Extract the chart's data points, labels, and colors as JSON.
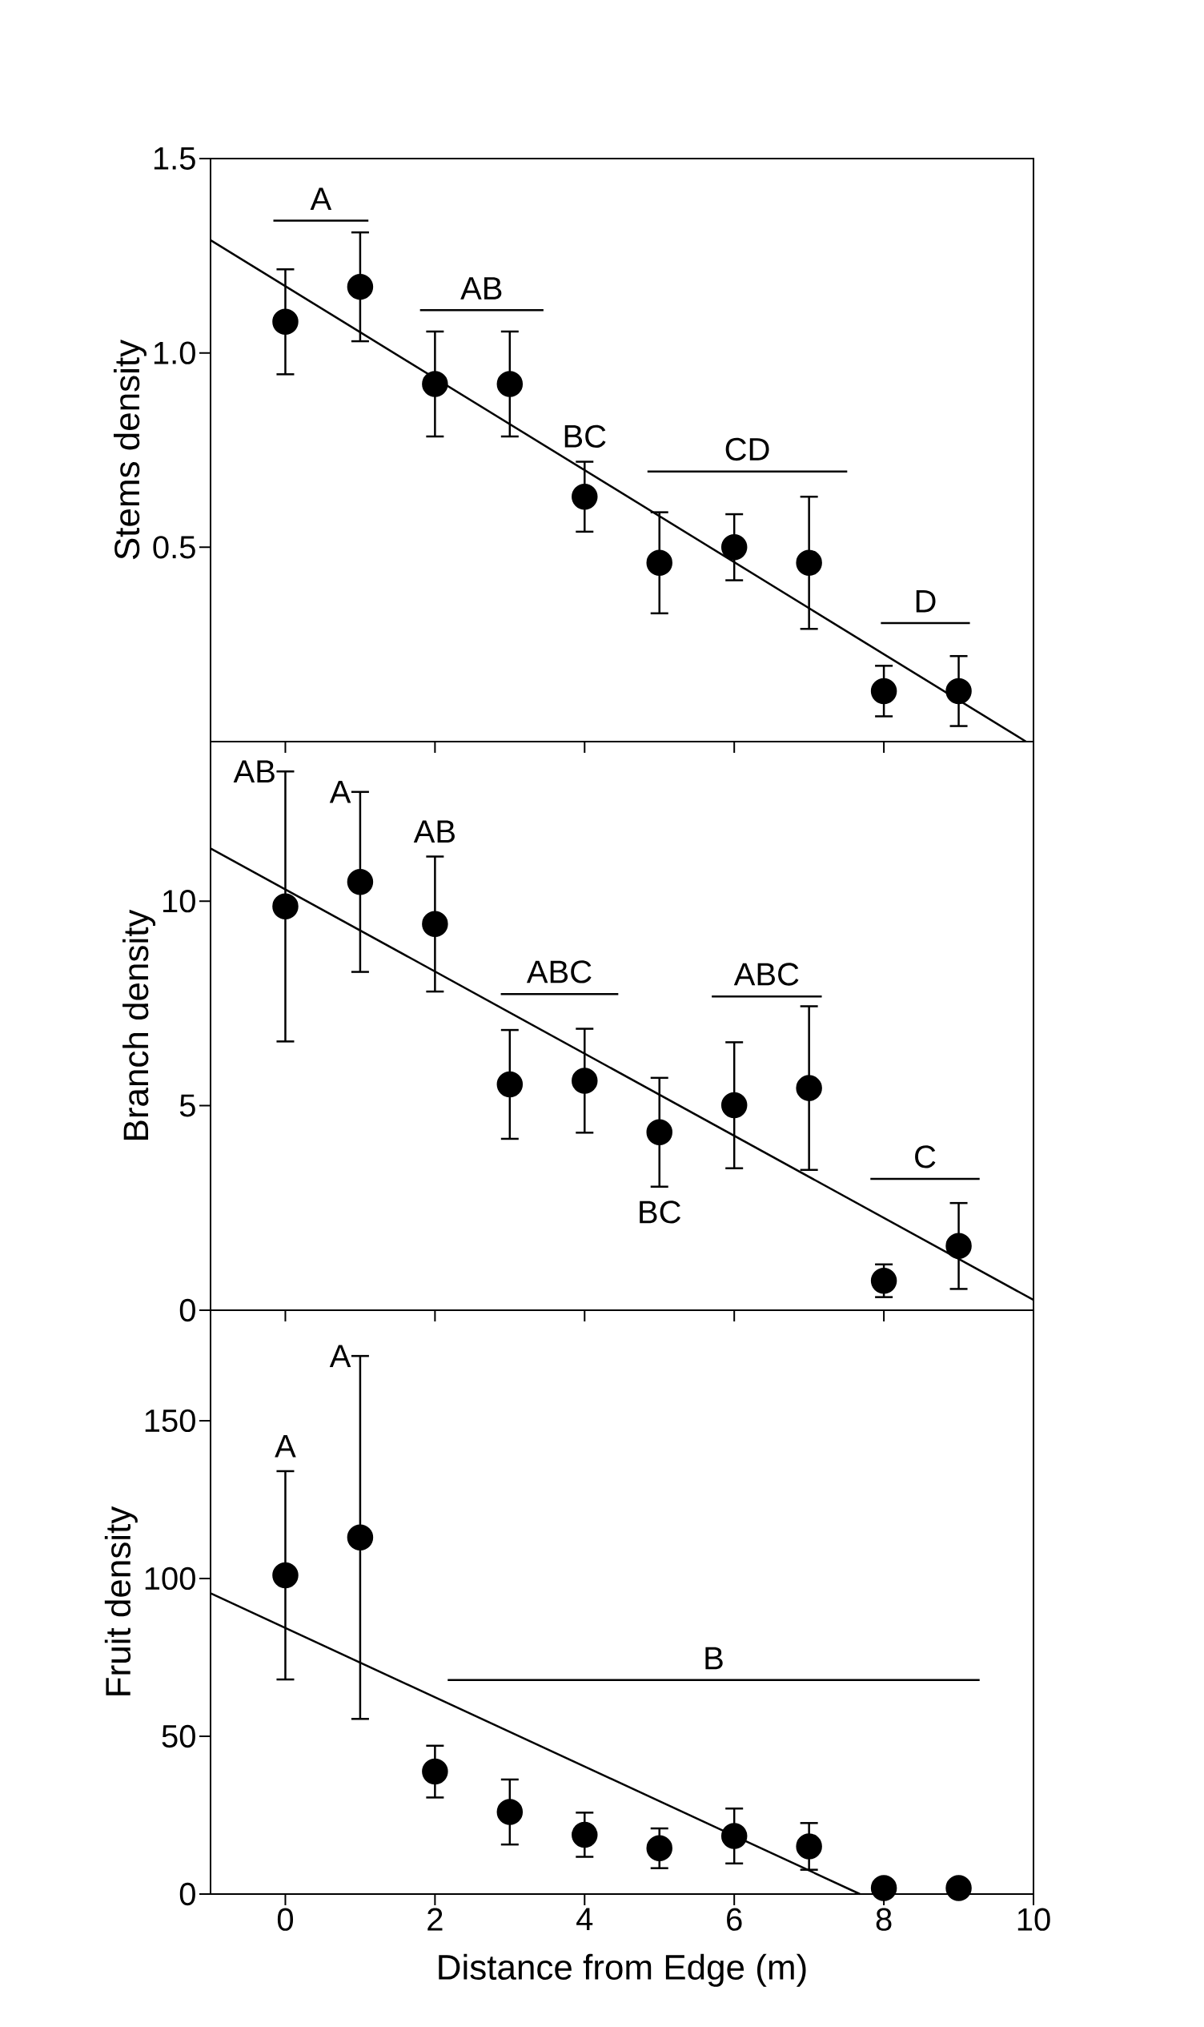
{
  "chart_data": [
    {
      "type": "scatter",
      "ylabel": "Stems density",
      "xlim": [
        -1,
        10
      ],
      "xticks": [
        0,
        2,
        4,
        6,
        8,
        10
      ],
      "ylim": [
        0,
        1.5
      ],
      "yticks": [
        0.5,
        {
          "value": 1,
          "label": "1.0"
        },
        1.5
      ],
      "tick_labels": "y",
      "marker": "circle",
      "series": [
        {
          "color": "#000000",
          "x": [
            0,
            1,
            2,
            3,
            4,
            5,
            6,
            7,
            8,
            9
          ],
          "values": [
            1.08,
            1.17,
            0.92,
            0.92,
            0.63,
            0.46,
            0.5,
            0.46,
            0.13,
            0.13
          ],
          "errors": [
            0.135,
            0.14,
            0.135,
            0.135,
            0.09,
            0.13,
            0.085,
            0.17,
            0.065,
            0.09
          ]
        },
        {
          "type": "line",
          "marker": "none",
          "color": "#000000",
          "x": [
            -1,
            9.9
          ],
          "values": [
            1.29,
            0.0
          ]
        },
        {
          "type": "line",
          "name": "A",
          "marker": "none",
          "color": "#000000",
          "x": [
            -0.16,
            1.11
          ],
          "values": [
            1.34,
            1.34
          ]
        },
        {
          "type": "line",
          "name": "AB",
          "marker": "none",
          "color": "#000000",
          "x": [
            1.8,
            3.45
          ],
          "values": [
            1.11,
            1.11
          ]
        },
        {
          "type": "line",
          "name": "CD",
          "marker": "none",
          "color": "#000000",
          "x": [
            4.84,
            7.51
          ],
          "values": [
            0.695,
            0.695
          ]
        },
        {
          "type": "line",
          "name": "D",
          "marker": "none",
          "color": "#000000",
          "x": [
            7.96,
            9.15
          ],
          "values": [
            0.305,
            0.305
          ]
        }
      ],
      "annotations": [
        {
          "text": "BC",
          "x": 4,
          "y": 0.72
        }
      ]
    },
    {
      "type": "scatter",
      "ylabel": "Branch density",
      "xlim": [
        -1,
        10
      ],
      "xticks": [
        0,
        2,
        4,
        6,
        8,
        10
      ],
      "ylim": [
        0,
        13.9
      ],
      "yticks": [
        0,
        5,
        10
      ],
      "tick_labels": "y",
      "marker": "circle",
      "series": [
        {
          "color": "#000000",
          "x": [
            0,
            1,
            2,
            3,
            4,
            5,
            6,
            7,
            8,
            9
          ],
          "values": [
            9.87,
            10.47,
            9.44,
            5.52,
            5.61,
            4.35,
            5.01,
            5.43,
            0.72,
            1.57
          ],
          "errors": [
            3.3,
            2.2,
            1.65,
            1.33,
            1.27,
            1.33,
            1.54,
            2.0,
            0.4,
            1.05
          ]
        },
        {
          "type": "line",
          "marker": "none",
          "color": "#000000",
          "x": [
            -1,
            10
          ],
          "values": [
            11.29,
            0.25
          ]
        },
        {
          "type": "line",
          "name": "ABC",
          "marker": "none",
          "color": "#000000",
          "x": [
            2.88,
            4.45
          ],
          "values": [
            7.73,
            7.73
          ]
        },
        {
          "type": "line",
          "name": "ABC",
          "marker": "none",
          "color": "#000000",
          "x": [
            5.7,
            7.17
          ],
          "values": [
            7.67,
            7.67
          ]
        },
        {
          "type": "line",
          "name": "C",
          "marker": "none",
          "color": "#000000",
          "x": [
            7.82,
            9.28
          ],
          "values": [
            3.21,
            3.21
          ]
        }
      ],
      "annotations": [
        {
          "text": "AB",
          "x": 0,
          "y": 13.17
        },
        {
          "text": "A",
          "x": 1,
          "y": 12.67
        },
        {
          "text": "AB",
          "x": 2,
          "y": 11.09
        },
        {
          "text": "BC",
          "x": 5,
          "y": 3.02
        }
      ]
    },
    {
      "type": "scatter",
      "ylabel": "Fruit density",
      "xlabel": "Distance from Edge (m)",
      "xlim": [
        -1,
        10
      ],
      "xticks": [
        0,
        2,
        4,
        6,
        8,
        10
      ],
      "ylim": [
        0,
        185
      ],
      "yticks": [
        0,
        50,
        100,
        150
      ],
      "marker": "circle",
      "series": [
        {
          "color": "#000000",
          "x": [
            0,
            1,
            2,
            3,
            4,
            5,
            6,
            7,
            8,
            9
          ],
          "values": [
            101,
            113,
            38.8,
            26,
            18.8,
            14.5,
            18.4,
            15.1,
            1.9,
            1.9
          ],
          "errors": [
            33,
            57.5,
            8.2,
            10.3,
            7,
            6.3,
            8.7,
            7.4,
            null,
            null
          ]
        },
        {
          "type": "line",
          "marker": "none",
          "color": "#000000",
          "x": [
            -1,
            7.68
          ],
          "values": [
            95.3,
            0
          ]
        },
        {
          "type": "line",
          "name": "B",
          "marker": "none",
          "color": "#000000",
          "x": [
            2.17,
            9.28
          ],
          "values": [
            67.8,
            67.8
          ]
        }
      ],
      "annotations": [
        {
          "text": "A",
          "x": 0,
          "y": 134
        },
        {
          "text": "A",
          "x": 1,
          "y": 170.5
        }
      ]
    }
  ]
}
